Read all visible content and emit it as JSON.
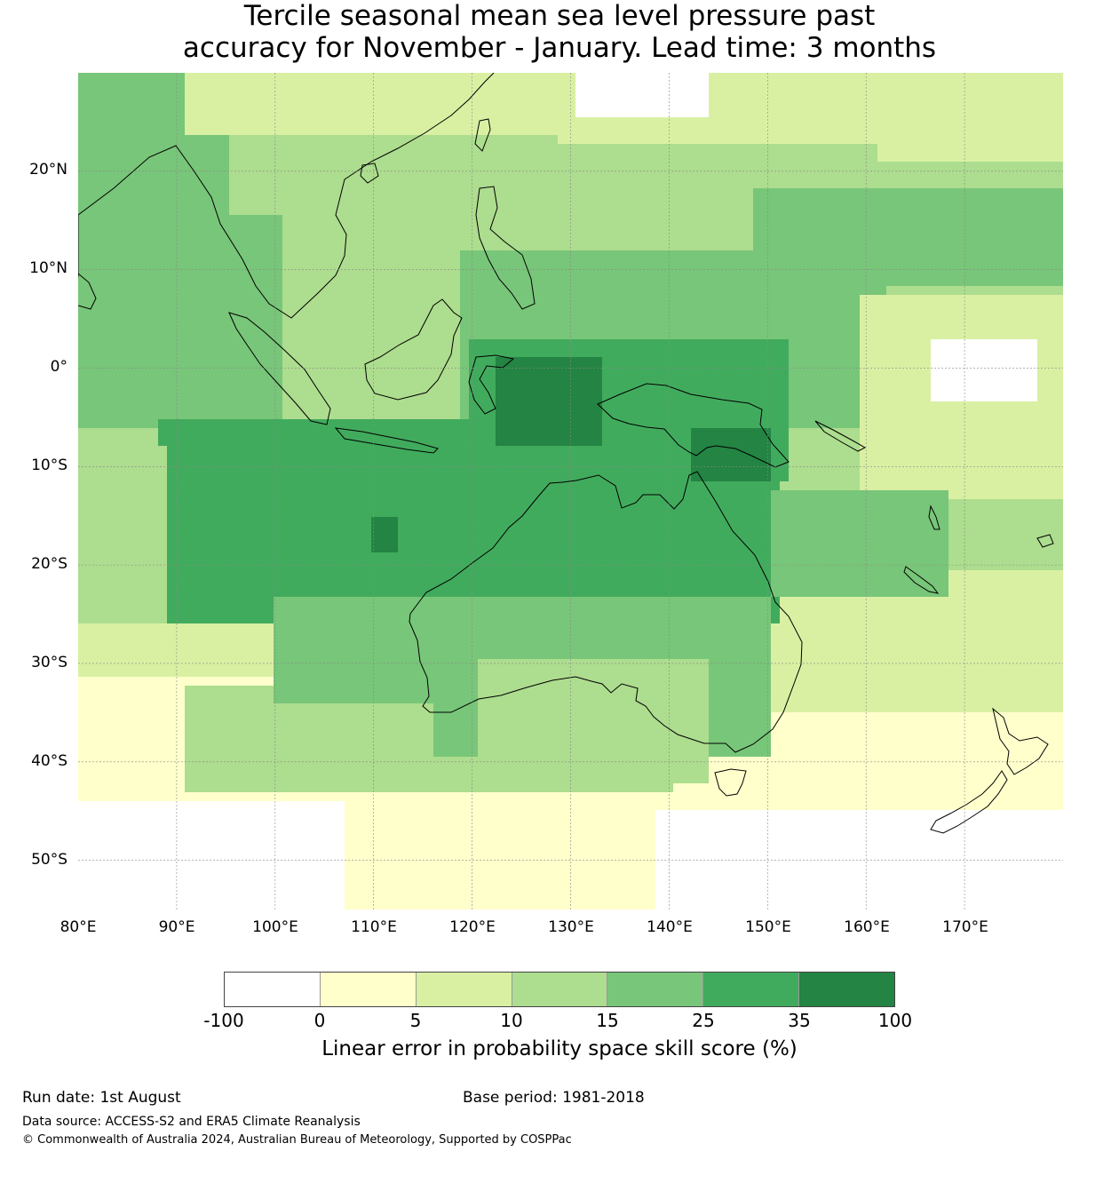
{
  "title": {
    "line1": "Tercile seasonal mean sea level pressure past",
    "line2": "accuracy for November - January. Lead time: 3 months"
  },
  "map": {
    "lat_labels": [
      "20°N",
      "10°N",
      "0°",
      "10°S",
      "20°S",
      "30°S",
      "40°S",
      "50°S"
    ],
    "lon_labels": [
      "80°E",
      "90°E",
      "100°E",
      "110°E",
      "120°E",
      "130°E",
      "140°E",
      "150°E",
      "160°E",
      "170°E"
    ],
    "lon_range": [
      80,
      180
    ],
    "lat_range": [
      -55,
      30
    ]
  },
  "colorbar": {
    "colors": [
      "#ffffff",
      "#ffffcc",
      "#d9f0a3",
      "#addd8e",
      "#78c679",
      "#41ab5d",
      "#238443"
    ],
    "ticks": [
      "-100",
      "0",
      "5",
      "10",
      "15",
      "25",
      "35",
      "100"
    ],
    "label": "Linear error in probability space skill score (%)"
  },
  "footer": {
    "run_date": "Run date: 1st August",
    "base_period": "Base period: 1981-2018",
    "data_source": "Data source: ACCESS-S2 and ERA5 Climate Reanalysis",
    "copyright": "© Commonwealth of Australia 2024, Australian Bureau of Meteorology, Supported by COSPPac"
  }
}
